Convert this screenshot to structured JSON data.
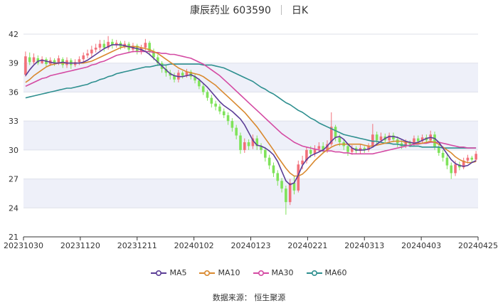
{
  "header": {
    "title": "康辰药业 603590",
    "period": "日K"
  },
  "source": "数据来源： 恒生聚源",
  "colors": {
    "up": "#f2707a",
    "down": "#7fe35a",
    "ma5": "#5b3d96",
    "ma10": "#d9892f",
    "ma30": "#d44aa3",
    "ma60": "#2e8f8f",
    "band": "#eef0f9",
    "grid": "#dde0ea"
  },
  "chart_data": {
    "type": "candlestick",
    "x_ticks": [
      "20231030",
      "20231120",
      "20231211",
      "20240102",
      "20240123",
      "20240221",
      "20240313",
      "20240403",
      "20240425"
    ],
    "y_ticks": [
      21,
      24,
      27,
      30,
      33,
      36,
      39,
      42
    ],
    "ylim": [
      21,
      42
    ],
    "legend": [
      "MA5",
      "MA10",
      "MA30",
      "MA60"
    ],
    "legend_position": "bottom",
    "ma5": [
      37.7,
      38.3,
      38.8,
      39.2,
      39.3,
      39.2,
      39.1,
      39.0,
      39.0,
      39.1,
      39.0,
      39.0,
      39.0,
      39.0,
      39.1,
      39.3,
      39.6,
      39.9,
      40.2,
      40.5,
      40.7,
      40.9,
      40.9,
      40.9,
      40.8,
      40.7,
      40.6,
      40.5,
      40.4,
      40.2,
      39.9,
      39.5,
      39.1,
      38.7,
      38.3,
      37.9,
      37.7,
      37.6,
      37.6,
      37.7,
      37.8,
      37.6,
      37.3,
      36.9,
      36.5,
      36.0,
      35.5,
      35.0,
      34.6,
      34.3,
      34.0,
      33.6,
      33.2,
      32.6,
      31.8,
      31.0,
      30.5,
      30.4,
      30.2,
      29.9,
      29.5,
      28.8,
      27.8,
      26.8,
      26.4,
      26.6,
      27.4,
      28.4,
      29.0,
      29.4,
      29.6,
      29.8,
      30.0,
      30.4,
      30.9,
      31.3,
      31.4,
      31.1,
      30.6,
      30.2,
      30.0,
      30.0,
      30.0,
      30.1,
      30.3,
      30.6,
      30.9,
      31.2,
      31.4,
      31.4,
      31.3,
      31.1,
      30.9,
      30.8,
      30.7,
      30.8,
      31.0,
      31.2,
      31.3,
      31.2,
      30.8,
      30.2,
      29.6,
      29.0,
      28.6,
      28.4,
      28.3,
      28.4,
      28.7,
      28.9
    ],
    "ma10": [
      37.0,
      37.3,
      37.7,
      38.0,
      38.3,
      38.6,
      38.8,
      38.9,
      39.0,
      39.0,
      39.0,
      39.0,
      39.0,
      39.0,
      39.0,
      39.1,
      39.2,
      39.4,
      39.6,
      39.8,
      40.0,
      40.2,
      40.4,
      40.6,
      40.7,
      40.7,
      40.7,
      40.7,
      40.6,
      40.5,
      40.4,
      40.2,
      40.0,
      39.7,
      39.4,
      39.1,
      38.8,
      38.5,
      38.3,
      38.1,
      38.0,
      37.9,
      37.8,
      37.6,
      37.3,
      37.0,
      36.7,
      36.3,
      35.9,
      35.5,
      35.1,
      34.7,
      34.3,
      33.9,
      33.4,
      32.9,
      32.4,
      31.8,
      31.2,
      30.6,
      30.0,
      29.3,
      28.7,
      28.1,
      27.6,
      27.3,
      27.3,
      27.5,
      27.9,
      28.4,
      28.9,
      29.3,
      29.7,
      30.0,
      30.3,
      30.5,
      30.6,
      30.6,
      30.6,
      30.6,
      30.6,
      30.6,
      30.5,
      30.4,
      30.4,
      30.5,
      30.6,
      30.7,
      30.8,
      30.9,
      30.9,
      30.9,
      30.8,
      30.8,
      30.7,
      30.7,
      30.7,
      30.8,
      30.9,
      30.8,
      30.6,
      30.3,
      30.0,
      29.7,
      29.3,
      29.0,
      28.8,
      28.7,
      28.7,
      28.8
    ],
    "ma30": [
      36.6,
      36.8,
      37.0,
      37.2,
      37.4,
      37.5,
      37.7,
      37.8,
      37.9,
      38.0,
      38.1,
      38.2,
      38.3,
      38.4,
      38.5,
      38.6,
      38.8,
      38.9,
      39.1,
      39.2,
      39.4,
      39.6,
      39.8,
      39.9,
      40.0,
      40.1,
      40.2,
      40.2,
      40.2,
      40.2,
      40.2,
      40.1,
      40.1,
      40.0,
      40.0,
      39.9,
      39.9,
      39.8,
      39.7,
      39.6,
      39.5,
      39.3,
      39.1,
      38.9,
      38.6,
      38.3,
      38.0,
      37.7,
      37.3,
      36.9,
      36.5,
      36.1,
      35.7,
      35.3,
      34.9,
      34.5,
      34.1,
      33.7,
      33.3,
      32.9,
      32.5,
      32.1,
      31.7,
      31.4,
      31.1,
      30.8,
      30.6,
      30.4,
      30.3,
      30.2,
      30.1,
      30.0,
      29.9,
      29.9,
      29.9,
      29.8,
      29.8,
      29.7,
      29.7,
      29.6,
      29.6,
      29.6,
      29.6,
      29.6,
      29.6,
      29.7,
      29.8,
      29.9,
      30.0,
      30.1,
      30.2,
      30.3,
      30.4,
      30.5,
      30.6,
      30.6,
      30.7,
      30.7,
      30.8,
      30.8,
      30.8,
      30.7,
      30.6,
      30.5,
      30.4,
      30.3,
      30.3,
      30.2,
      30.2,
      30.2
    ],
    "ma60": [
      35.4,
      35.5,
      35.6,
      35.7,
      35.8,
      35.9,
      36.0,
      36.1,
      36.2,
      36.3,
      36.4,
      36.4,
      36.5,
      36.6,
      36.7,
      36.8,
      37.0,
      37.1,
      37.3,
      37.4,
      37.6,
      37.7,
      37.9,
      38.0,
      38.1,
      38.2,
      38.3,
      38.4,
      38.5,
      38.6,
      38.6,
      38.7,
      38.8,
      38.8,
      38.8,
      38.9,
      38.9,
      38.9,
      38.9,
      38.9,
      38.9,
      38.9,
      38.9,
      38.8,
      38.8,
      38.8,
      38.7,
      38.6,
      38.5,
      38.3,
      38.1,
      37.9,
      37.7,
      37.5,
      37.3,
      37.1,
      36.8,
      36.5,
      36.3,
      36.0,
      35.8,
      35.5,
      35.2,
      34.9,
      34.7,
      34.4,
      34.1,
      33.9,
      33.6,
      33.3,
      33.1,
      32.8,
      32.6,
      32.4,
      32.2,
      32.0,
      31.8,
      31.6,
      31.5,
      31.4,
      31.3,
      31.2,
      31.1,
      31.0,
      30.9,
      30.9,
      30.8,
      30.7,
      30.7,
      30.6,
      30.6,
      30.5,
      30.5,
      30.4,
      30.4,
      30.4,
      30.3,
      30.3,
      30.3,
      30.3,
      30.3,
      30.2,
      30.2,
      30.2,
      30.2,
      30.2,
      30.2,
      30.2,
      30.2,
      30.2
    ],
    "candles": [
      [
        37.8,
        39.7,
        40.2,
        37.6
      ],
      [
        39.6,
        39.1,
        40.1,
        38.8
      ],
      [
        39.1,
        39.6,
        40.0,
        38.9
      ],
      [
        39.5,
        39.0,
        39.8,
        38.8
      ],
      [
        39.0,
        39.4,
        39.7,
        38.9
      ],
      [
        39.4,
        38.9,
        39.6,
        38.6
      ],
      [
        38.9,
        39.3,
        39.6,
        38.7
      ],
      [
        39.3,
        39.0,
        39.5,
        38.7
      ],
      [
        39.0,
        39.5,
        39.8,
        38.8
      ],
      [
        39.4,
        38.8,
        39.6,
        38.5
      ],
      [
        38.8,
        39.3,
        39.6,
        38.5
      ],
      [
        39.3,
        38.8,
        39.5,
        38.4
      ],
      [
        38.8,
        39.1,
        39.4,
        38.6
      ],
      [
        39.1,
        39.4,
        39.7,
        38.8
      ],
      [
        39.4,
        39.8,
        40.1,
        39.1
      ],
      [
        39.8,
        40.0,
        40.4,
        39.5
      ],
      [
        40.0,
        40.4,
        40.8,
        39.6
      ],
      [
        40.4,
        40.6,
        41.0,
        40.1
      ],
      [
        40.6,
        41.0,
        41.4,
        40.3
      ],
      [
        41.0,
        40.6,
        41.4,
        40.2
      ],
      [
        40.6,
        41.2,
        41.8,
        40.4
      ],
      [
        41.2,
        40.9,
        41.5,
        40.5
      ],
      [
        40.9,
        41.1,
        41.4,
        40.6
      ],
      [
        41.1,
        40.7,
        41.3,
        40.4
      ],
      [
        40.7,
        41.0,
        41.3,
        40.5
      ],
      [
        41.0,
        40.4,
        41.2,
        40.1
      ],
      [
        40.4,
        40.8,
        41.1,
        40.1
      ],
      [
        40.8,
        40.2,
        41.0,
        39.9
      ],
      [
        40.2,
        40.6,
        40.9,
        39.9
      ],
      [
        40.6,
        41.1,
        41.5,
        40.3
      ],
      [
        41.1,
        40.2,
        41.3,
        39.8
      ],
      [
        40.2,
        39.6,
        40.5,
        39.3
      ],
      [
        39.6,
        39.0,
        39.9,
        38.7
      ],
      [
        39.0,
        38.4,
        39.2,
        38.0
      ],
      [
        38.4,
        38.0,
        38.8,
        37.6
      ],
      [
        38.0,
        37.7,
        38.3,
        37.3
      ],
      [
        37.7,
        37.3,
        38.0,
        37.0
      ],
      [
        37.3,
        38.0,
        38.3,
        37.0
      ],
      [
        38.0,
        37.7,
        38.2,
        37.4
      ],
      [
        37.7,
        38.1,
        38.4,
        37.5
      ],
      [
        38.1,
        37.6,
        38.3,
        37.3
      ],
      [
        37.6,
        37.2,
        37.9,
        36.9
      ],
      [
        37.2,
        36.6,
        37.4,
        36.3
      ],
      [
        36.6,
        36.0,
        36.9,
        35.7
      ],
      [
        36.0,
        35.4,
        36.2,
        35.1
      ],
      [
        35.4,
        34.8,
        35.7,
        34.4
      ],
      [
        34.8,
        34.5,
        35.1,
        34.1
      ],
      [
        34.5,
        34.0,
        34.8,
        33.7
      ],
      [
        34.0,
        33.6,
        34.3,
        33.3
      ],
      [
        33.6,
        33.0,
        33.9,
        32.6
      ],
      [
        33.0,
        32.3,
        33.3,
        31.9
      ],
      [
        32.3,
        31.5,
        32.6,
        31.1
      ],
      [
        31.5,
        30.0,
        31.8,
        29.6
      ],
      [
        30.0,
        30.8,
        31.2,
        29.7
      ],
      [
        30.8,
        30.4,
        31.1,
        30.0
      ],
      [
        30.4,
        31.2,
        31.6,
        30.1
      ],
      [
        31.2,
        30.4,
        31.5,
        30.0
      ],
      [
        30.4,
        30.0,
        30.7,
        29.6
      ],
      [
        30.0,
        29.2,
        30.3,
        28.8
      ],
      [
        29.2,
        28.4,
        29.5,
        28.0
      ],
      [
        28.4,
        27.6,
        28.7,
        27.2
      ],
      [
        27.6,
        26.8,
        27.9,
        26.3
      ],
      [
        26.8,
        26.0,
        27.1,
        25.6
      ],
      [
        26.0,
        24.6,
        26.3,
        23.3
      ],
      [
        24.6,
        26.6,
        27.0,
        24.3
      ],
      [
        26.6,
        25.8,
        27.3,
        25.4
      ],
      [
        25.8,
        28.5,
        28.9,
        25.6
      ],
      [
        28.5,
        28.9,
        29.4,
        28.0
      ],
      [
        28.9,
        30.0,
        30.3,
        28.6
      ],
      [
        30.0,
        29.6,
        30.4,
        29.2
      ],
      [
        29.6,
        30.1,
        30.5,
        29.3
      ],
      [
        30.1,
        30.4,
        30.8,
        29.8
      ],
      [
        30.4,
        30.0,
        30.8,
        29.6
      ],
      [
        30.0,
        30.6,
        31.0,
        29.7
      ],
      [
        30.6,
        32.4,
        33.9,
        30.4
      ],
      [
        32.4,
        31.3,
        32.6,
        30.9
      ],
      [
        31.3,
        30.8,
        31.6,
        30.4
      ],
      [
        30.8,
        30.4,
        31.1,
        30.0
      ],
      [
        30.4,
        29.8,
        30.7,
        29.4
      ],
      [
        29.8,
        30.2,
        30.5,
        29.5
      ],
      [
        30.2,
        29.9,
        30.4,
        29.6
      ],
      [
        29.9,
        30.2,
        30.6,
        29.6
      ],
      [
        30.2,
        30.0,
        30.4,
        29.7
      ],
      [
        30.0,
        30.4,
        30.7,
        29.8
      ],
      [
        30.4,
        31.6,
        32.7,
        30.3
      ],
      [
        31.6,
        31.0,
        31.9,
        30.6
      ],
      [
        31.0,
        31.4,
        31.8,
        30.7
      ],
      [
        31.4,
        31.0,
        31.7,
        30.7
      ],
      [
        31.0,
        31.5,
        31.8,
        30.8
      ],
      [
        31.5,
        31.1,
        31.8,
        30.8
      ],
      [
        31.1,
        30.7,
        31.4,
        30.3
      ],
      [
        30.7,
        30.4,
        31.0,
        30.1
      ],
      [
        30.4,
        30.8,
        31.1,
        30.2
      ],
      [
        30.8,
        30.6,
        31.0,
        30.3
      ],
      [
        30.6,
        31.2,
        31.5,
        30.4
      ],
      [
        31.2,
        30.9,
        31.5,
        30.6
      ],
      [
        30.9,
        31.3,
        31.6,
        30.7
      ],
      [
        31.3,
        31.0,
        31.6,
        30.7
      ],
      [
        31.0,
        31.6,
        32.0,
        30.8
      ],
      [
        31.6,
        30.3,
        31.9,
        30.0
      ],
      [
        30.3,
        29.7,
        30.6,
        29.4
      ],
      [
        29.7,
        29.2,
        30.0,
        28.8
      ],
      [
        29.2,
        28.4,
        29.5,
        28.0
      ],
      [
        28.4,
        27.6,
        28.7,
        27.0
      ],
      [
        27.6,
        28.5,
        28.9,
        27.3
      ],
      [
        28.5,
        28.2,
        28.8,
        27.9
      ],
      [
        28.2,
        28.9,
        29.2,
        28.0
      ],
      [
        28.9,
        29.2,
        29.5,
        28.6
      ],
      [
        29.2,
        29.0,
        29.4,
        28.7
      ],
      [
        29.0,
        29.6,
        29.9,
        28.8
      ]
    ]
  }
}
